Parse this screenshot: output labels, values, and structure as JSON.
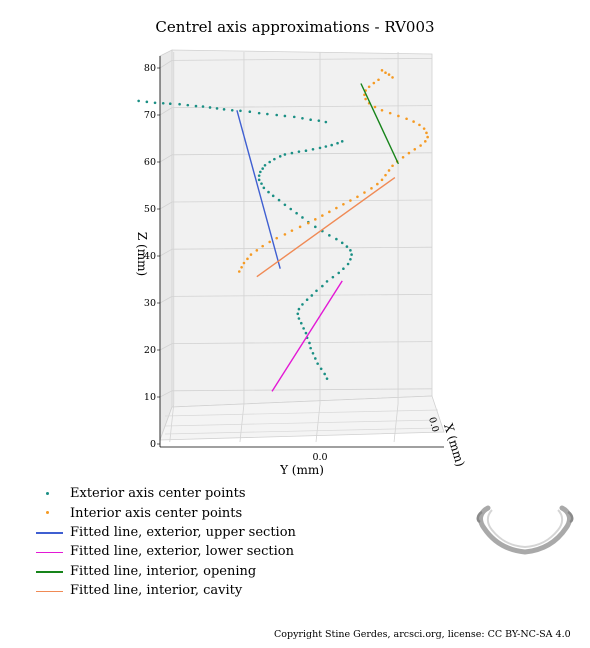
{
  "chart_data": {
    "type": "scatter",
    "title": "Centrel axis approximations - RV003",
    "xlabel": "Y (mm)",
    "ylabel": "Z (mm)",
    "zlabel": "X (mm)",
    "x_ticks": [
      "0.0"
    ],
    "y_ticks": [
      "0",
      "10",
      "20",
      "30",
      "40",
      "50",
      "60",
      "70",
      "80"
    ],
    "depth_ticks": [
      "0.0"
    ],
    "ylim": [
      0,
      82
    ],
    "xlim": [
      -17,
      11
    ],
    "grid": true,
    "legend_position": "bottom-left",
    "series": [
      {
        "name": "Exterior axis center points",
        "kind": "points",
        "color": "#1a8f84",
        "points": [
          [
            -15.5,
            73.0
          ],
          [
            -14.8,
            72.8
          ],
          [
            -14.1,
            72.6
          ],
          [
            -13.4,
            72.5
          ],
          [
            -12.8,
            72.4
          ],
          [
            -12.0,
            72.3
          ],
          [
            -11.3,
            72.1
          ],
          [
            -10.6,
            71.9
          ],
          [
            -10.0,
            71.8
          ],
          [
            -9.4,
            71.6
          ],
          [
            -8.8,
            71.4
          ],
          [
            -8.2,
            71.2
          ],
          [
            -7.5,
            71.0
          ],
          [
            -6.8,
            70.9
          ],
          [
            -6.0,
            70.7
          ],
          [
            -5.2,
            70.4
          ],
          [
            -4.5,
            70.2
          ],
          [
            -3.7,
            70.0
          ],
          [
            -3.0,
            69.8
          ],
          [
            -2.2,
            69.6
          ],
          [
            -1.5,
            69.3
          ],
          [
            -0.8,
            69.0
          ],
          [
            -0.1,
            68.8
          ],
          [
            0.5,
            68.5
          ],
          [
            1.9,
            64.4
          ],
          [
            1.5,
            64.0
          ],
          [
            1.0,
            63.6
          ],
          [
            0.5,
            63.3
          ],
          [
            0.0,
            63.0
          ],
          [
            -0.6,
            62.7
          ],
          [
            -1.2,
            62.4
          ],
          [
            -1.8,
            62.2
          ],
          [
            -2.4,
            61.9
          ],
          [
            -3.0,
            61.6
          ],
          [
            -3.4,
            61.2
          ],
          [
            -3.9,
            60.6
          ],
          [
            -4.3,
            60.0
          ],
          [
            -4.7,
            59.3
          ],
          [
            -4.9,
            58.6
          ],
          [
            -5.1,
            57.9
          ],
          [
            -5.2,
            57.1
          ],
          [
            -5.2,
            56.2
          ],
          [
            -5.0,
            55.4
          ],
          [
            -4.8,
            54.5
          ],
          [
            -4.4,
            53.6
          ],
          [
            -4.0,
            52.8
          ],
          [
            -3.5,
            51.9
          ],
          [
            -3.0,
            50.9
          ],
          [
            -2.5,
            50.0
          ],
          [
            -2.0,
            49.1
          ],
          [
            -1.5,
            48.2
          ],
          [
            -1.0,
            47.2
          ],
          [
            -0.4,
            46.2
          ],
          [
            0.2,
            45.3
          ],
          [
            0.8,
            44.4
          ],
          [
            1.4,
            43.6
          ],
          [
            1.9,
            42.8
          ],
          [
            2.3,
            42.0
          ],
          [
            2.6,
            41.2
          ],
          [
            2.7,
            40.3
          ],
          [
            2.6,
            39.3
          ],
          [
            2.4,
            38.3
          ],
          [
            2.0,
            37.3
          ],
          [
            1.6,
            36.4
          ],
          [
            1.1,
            35.5
          ],
          [
            0.6,
            34.6
          ],
          [
            0.2,
            33.6
          ],
          [
            -0.3,
            32.6
          ],
          [
            -0.7,
            31.6
          ],
          [
            -1.1,
            30.7
          ],
          [
            -1.5,
            29.7
          ],
          [
            -1.8,
            28.7
          ],
          [
            -1.9,
            27.7
          ],
          [
            -1.8,
            26.7
          ],
          [
            -1.6,
            25.7
          ],
          [
            -1.4,
            24.6
          ],
          [
            -1.2,
            23.6
          ],
          [
            -1.1,
            22.6
          ],
          [
            -0.9,
            21.5
          ],
          [
            -0.8,
            20.4
          ],
          [
            -0.6,
            19.3
          ],
          [
            -0.4,
            18.2
          ],
          [
            -0.2,
            17.1
          ],
          [
            0.1,
            16.0
          ],
          [
            0.4,
            14.9
          ],
          [
            0.6,
            13.9
          ]
        ]
      },
      {
        "name": "Interior axis center points",
        "kind": "points",
        "color": "#f59a23",
        "points": [
          [
            5.3,
            79.5
          ],
          [
            5.6,
            79.0
          ],
          [
            5.9,
            78.6
          ],
          [
            6.2,
            78.0
          ],
          [
            5.0,
            77.5
          ],
          [
            4.6,
            76.8
          ],
          [
            4.2,
            76.0
          ],
          [
            3.9,
            75.2
          ],
          [
            3.8,
            74.3
          ],
          [
            3.9,
            73.4
          ],
          [
            4.2,
            72.5
          ],
          [
            4.7,
            71.7
          ],
          [
            5.3,
            71.0
          ],
          [
            6.0,
            70.4
          ],
          [
            6.7,
            69.8
          ],
          [
            7.4,
            69.2
          ],
          [
            8.0,
            68.6
          ],
          [
            8.5,
            67.9
          ],
          [
            8.9,
            67.1
          ],
          [
            9.1,
            66.2
          ],
          [
            9.2,
            65.3
          ],
          [
            9.0,
            64.4
          ],
          [
            8.6,
            63.5
          ],
          [
            8.1,
            62.7
          ],
          [
            7.6,
            61.9
          ],
          [
            7.1,
            61.0
          ],
          [
            6.6,
            60.1
          ],
          [
            6.2,
            59.2
          ],
          [
            5.9,
            58.2
          ],
          [
            5.6,
            57.2
          ],
          [
            5.3,
            56.2
          ],
          [
            4.9,
            55.3
          ],
          [
            4.4,
            54.4
          ],
          [
            3.8,
            53.5
          ],
          [
            3.2,
            52.6
          ],
          [
            2.6,
            51.8
          ],
          [
            2.0,
            51.0
          ],
          [
            1.4,
            50.2
          ],
          [
            0.8,
            49.4
          ],
          [
            0.2,
            48.6
          ],
          [
            -0.4,
            47.8
          ],
          [
            -1.0,
            47.0
          ],
          [
            -1.7,
            46.2
          ],
          [
            -2.4,
            45.4
          ],
          [
            -3.0,
            44.6
          ],
          [
            -3.7,
            43.8
          ],
          [
            -4.3,
            43.0
          ],
          [
            -4.9,
            42.1
          ],
          [
            -5.4,
            41.2
          ],
          [
            -5.9,
            40.3
          ],
          [
            -6.2,
            39.4
          ],
          [
            -6.5,
            38.5
          ],
          [
            -6.7,
            37.6
          ],
          [
            -6.9,
            36.7
          ]
        ]
      },
      {
        "name": "Fitted line, exterior, upper section",
        "kind": "line",
        "color": "#3f5fd1",
        "points": [
          [
            -7.1,
            71.0
          ],
          [
            -3.4,
            37.3
          ]
        ]
      },
      {
        "name": "Fitted line, exterior, lower section",
        "kind": "line",
        "color": "#e318d5",
        "points": [
          [
            -4.1,
            11.2
          ],
          [
            1.9,
            34.7
          ]
        ]
      },
      {
        "name": "Fitted line, interior, opening",
        "kind": "line",
        "color": "#16841a",
        "points": [
          [
            3.5,
            76.7
          ],
          [
            6.7,
            59.6
          ]
        ]
      },
      {
        "name": "Fitted line, interior, cavity",
        "kind": "line",
        "color": "#f08a55",
        "points": [
          [
            -5.4,
            35.6
          ],
          [
            6.4,
            56.7
          ]
        ]
      }
    ]
  },
  "legend_items": [
    "Exterior axis center points",
    "Interior axis center points",
    "Fitted line, exterior, upper section",
    "Fitted line, exterior, lower section",
    "Fitted line, interior, opening",
    "Fitted line, interior, cavity"
  ],
  "copyright": "Copyright Stine Gerdes, arcsci.org, license: CC BY-NC-SA 4.0"
}
